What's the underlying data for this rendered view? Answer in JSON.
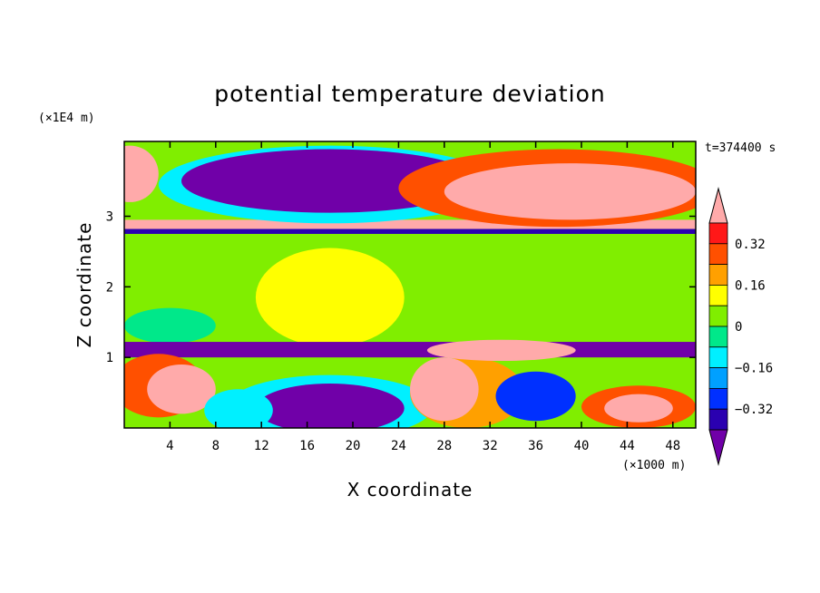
{
  "chart_data": {
    "type": "heatmap",
    "title": "potential temperature deviation",
    "xlabel": "X coordinate",
    "ylabel": "Z coordinate",
    "x_unit": "(×1000 m)",
    "y_unit": "(×1E4 m)",
    "time_label": "t=374400 s",
    "xlim": [
      0,
      50
    ],
    "ylim": [
      0,
      4.06
    ],
    "x_ticks": [
      4,
      8,
      12,
      16,
      20,
      24,
      28,
      32,
      36,
      40,
      44,
      48
    ],
    "y_ticks": [
      1,
      2,
      3
    ],
    "colorbar": {
      "levels": [
        -0.4,
        -0.32,
        -0.24,
        -0.16,
        -0.08,
        0,
        0.08,
        0.16,
        0.24,
        0.32,
        0.4
      ],
      "labels": [
        "0.32",
        "0.16",
        "0",
        "−0.16",
        "−0.32"
      ],
      "label_values": [
        0.32,
        0.16,
        0,
        -0.16,
        -0.32
      ],
      "colors": [
        "#7000a8",
        "#2a00b0",
        "#0030ff",
        "#00a0ff",
        "#00f0ff",
        "#00e88a",
        "#80ee00",
        "#ffff00",
        "#ffa000",
        "#ff5000",
        "#ff1818",
        "#ffaaaa"
      ],
      "extend": "both"
    },
    "field": {
      "background": "#00e88a",
      "regions": [
        {
          "type": "layer",
          "z": [
            0,
            4.06
          ],
          "value": 0.02
        },
        {
          "type": "blob",
          "x": 17,
          "z": 1.9,
          "rx": 14,
          "rz": 1.1,
          "value": 0.06
        },
        {
          "type": "blob",
          "x": 18,
          "z": 1.85,
          "rx": 6.5,
          "rz": 0.7,
          "value": 0.14
        },
        {
          "type": "blob",
          "x": 4,
          "z": 1.45,
          "rx": 4,
          "rz": 0.25,
          "value": -0.05
        },
        {
          "type": "layer",
          "z": [
            1.0,
            1.22
          ],
          "value": -0.45
        },
        {
          "type": "layer",
          "z": [
            2.75,
            2.82
          ],
          "value": -0.35
        },
        {
          "type": "layer",
          "z": [
            2.82,
            2.95
          ],
          "value": 0.45
        },
        {
          "type": "blob",
          "x": 18,
          "z": 3.45,
          "rx": 15,
          "rz": 0.55,
          "value": -0.15
        },
        {
          "type": "blob",
          "x": 18,
          "z": 3.5,
          "rx": 13,
          "rz": 0.45,
          "value": -0.45
        },
        {
          "type": "blob",
          "x": 38,
          "z": 3.4,
          "rx": 14,
          "rz": 0.55,
          "value": 0.3
        },
        {
          "type": "blob",
          "x": 39,
          "z": 3.35,
          "rx": 11,
          "rz": 0.4,
          "value": 0.45
        },
        {
          "type": "blob",
          "x": 0.5,
          "z": 3.6,
          "rx": 2.5,
          "rz": 0.4,
          "value": 0.4
        },
        {
          "type": "blob",
          "x": 18,
          "z": 0.3,
          "rx": 9,
          "rz": 0.45,
          "value": -0.15
        },
        {
          "type": "blob",
          "x": 18,
          "z": 0.28,
          "rx": 6.5,
          "rz": 0.35,
          "value": -0.45
        },
        {
          "type": "blob",
          "x": 3,
          "z": 0.6,
          "rx": 4,
          "rz": 0.45,
          "value": 0.3
        },
        {
          "type": "blob",
          "x": 5,
          "z": 0.55,
          "rx": 3,
          "rz": 0.35,
          "value": 0.45
        },
        {
          "type": "blob",
          "x": 30,
          "z": 0.5,
          "rx": 5,
          "rz": 0.5,
          "value": 0.2
        },
        {
          "type": "blob",
          "x": 28,
          "z": 0.55,
          "rx": 3,
          "rz": 0.45,
          "value": 0.45
        },
        {
          "type": "blob",
          "x": 33,
          "z": 1.1,
          "rx": 6.5,
          "rz": 0.15,
          "value": 0.45
        },
        {
          "type": "blob",
          "x": 45,
          "z": 0.3,
          "rx": 5,
          "rz": 0.3,
          "value": 0.25
        },
        {
          "type": "blob",
          "x": 45,
          "z": 0.28,
          "rx": 3,
          "rz": 0.2,
          "value": 0.45
        },
        {
          "type": "blob",
          "x": 36,
          "z": 0.45,
          "rx": 3.5,
          "rz": 0.35,
          "value": -0.25
        },
        {
          "type": "blob",
          "x": 10,
          "z": 0.25,
          "rx": 3,
          "rz": 0.3,
          "value": -0.1
        }
      ]
    }
  }
}
